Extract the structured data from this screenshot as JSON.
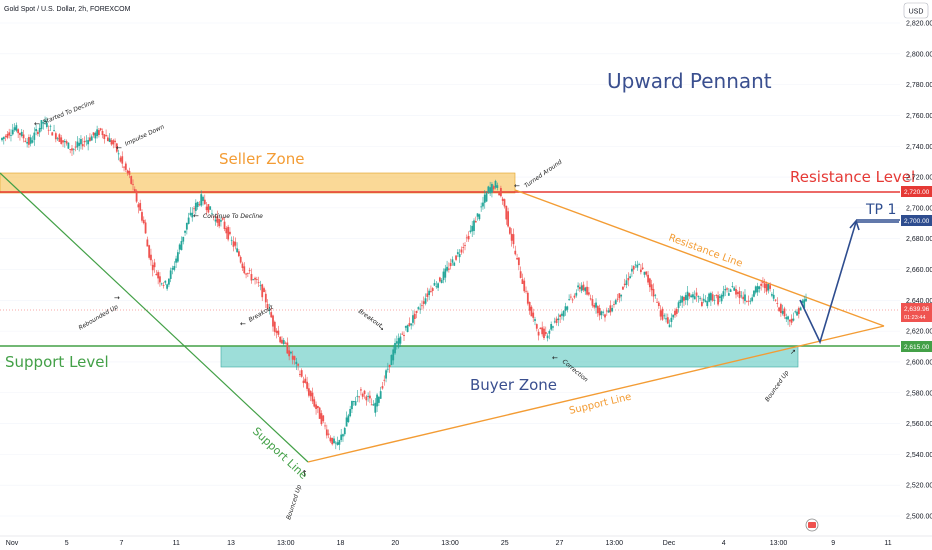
{
  "header": {
    "symbol_title": "Gold Spot / U.S. Dollar, 2h, FOREXCOM",
    "currency_button": "USD"
  },
  "price_tags": {
    "resistance": "2,720.00",
    "tp": "2,700.00",
    "current_price": "2,639.96",
    "countdown": "01:23:44",
    "support": "2,615.00"
  },
  "colors": {
    "seller_zone": "#f5b942",
    "buyer_zone": "#5bc8c0",
    "resistance": "#e53935",
    "support": "#43a047",
    "pennant": "#f39c34",
    "projection": "#2e4d8f",
    "candle_up": "#26a69a",
    "candle_down": "#ef5350"
  },
  "chart_data": {
    "type": "candlestick",
    "title": "Upward Pennant",
    "ylim": [
      2490,
      2840
    ],
    "y_ticks": [
      2500,
      2520,
      2540,
      2560,
      2580,
      2600,
      2620,
      2640,
      2660,
      2680,
      2700,
      2720,
      2740,
      2760,
      2780,
      2800,
      2820
    ],
    "y_tick_labels": [
      "2,500.00",
      "2,520.00",
      "2,540.00",
      "2,560.00",
      "2,580.00",
      "2,600.00",
      "2,620.00",
      "2,640.00",
      "2,660.00",
      "2,680.00",
      "2,700.00",
      "2,720.00",
      "2,740.00",
      "2,760.00",
      "2,780.00",
      "2,800.00",
      "2,820.00"
    ],
    "x_tick_labels": [
      "Nov",
      "5",
      "7",
      "11",
      "13",
      "13:00",
      "18",
      "20",
      "13:00",
      "25",
      "27",
      "13:00",
      "Dec",
      "4",
      "13:00",
      "9",
      "11"
    ],
    "price_path": [
      [
        0,
        2744
      ],
      [
        4,
        2752
      ],
      [
        8,
        2742
      ],
      [
        12,
        2756
      ],
      [
        16,
        2746
      ],
      [
        20,
        2738
      ],
      [
        24,
        2744
      ],
      [
        28,
        2750
      ],
      [
        32,
        2740
      ],
      [
        34,
        2728
      ],
      [
        36,
        2720
      ],
      [
        38,
        2705
      ],
      [
        40,
        2690
      ],
      [
        41,
        2675
      ],
      [
        42,
        2665
      ],
      [
        44,
        2655
      ],
      [
        46,
        2650
      ],
      [
        48,
        2660
      ],
      [
        50,
        2675
      ],
      [
        52,
        2690
      ],
      [
        54,
        2700
      ],
      [
        56,
        2706
      ],
      [
        58,
        2700
      ],
      [
        60,
        2692
      ],
      [
        62,
        2690
      ],
      [
        64,
        2680
      ],
      [
        66,
        2672
      ],
      [
        68,
        2660
      ],
      [
        70,
        2655
      ],
      [
        72,
        2650
      ],
      [
        74,
        2640
      ],
      [
        76,
        2625
      ],
      [
        78,
        2615
      ],
      [
        80,
        2608
      ],
      [
        82,
        2600
      ],
      [
        84,
        2590
      ],
      [
        86,
        2580
      ],
      [
        88,
        2570
      ],
      [
        90,
        2560
      ],
      [
        92,
        2550
      ],
      [
        94,
        2545
      ],
      [
        96,
        2558
      ],
      [
        98,
        2572
      ],
      [
        100,
        2580
      ],
      [
        102,
        2578
      ],
      [
        104,
        2570
      ],
      [
        106,
        2582
      ],
      [
        108,
        2596
      ],
      [
        110,
        2610
      ],
      [
        112,
        2618
      ],
      [
        114,
        2625
      ],
      [
        116,
        2632
      ],
      [
        118,
        2640
      ],
      [
        120,
        2648
      ],
      [
        122,
        2652
      ],
      [
        124,
        2658
      ],
      [
        126,
        2665
      ],
      [
        128,
        2672
      ],
      [
        130,
        2680
      ],
      [
        132,
        2690
      ],
      [
        134,
        2700
      ],
      [
        136,
        2712
      ],
      [
        138,
        2715
      ],
      [
        140,
        2705
      ],
      [
        142,
        2685
      ],
      [
        144,
        2665
      ],
      [
        146,
        2648
      ],
      [
        148,
        2630
      ],
      [
        150,
        2620
      ],
      [
        152,
        2618
      ],
      [
        154,
        2625
      ],
      [
        156,
        2630
      ],
      [
        158,
        2638
      ],
      [
        160,
        2644
      ],
      [
        162,
        2650
      ],
      [
        164,
        2642
      ],
      [
        166,
        2636
      ],
      [
        168,
        2630
      ],
      [
        170,
        2635
      ],
      [
        172,
        2642
      ],
      [
        174,
        2650
      ],
      [
        176,
        2660
      ],
      [
        178,
        2662
      ],
      [
        180,
        2655
      ],
      [
        182,
        2645
      ],
      [
        184,
        2632
      ],
      [
        186,
        2625
      ],
      [
        188,
        2632
      ],
      [
        190,
        2640
      ],
      [
        192,
        2644
      ],
      [
        194,
        2642
      ],
      [
        196,
        2638
      ],
      [
        198,
        2643
      ],
      [
        200,
        2640
      ],
      [
        202,
        2645
      ],
      [
        204,
        2648
      ],
      [
        206,
        2644
      ],
      [
        208,
        2640
      ],
      [
        210,
        2645
      ],
      [
        212,
        2650
      ],
      [
        214,
        2648
      ],
      [
        216,
        2640
      ],
      [
        218,
        2632
      ],
      [
        220,
        2627
      ],
      [
        222,
        2632
      ],
      [
        224,
        2640
      ]
    ],
    "zones": [
      {
        "name": "Seller Zone",
        "low": 2720,
        "high": 2733
      },
      {
        "name": "Buyer Zone",
        "low": 2604,
        "high": 2615
      }
    ],
    "levels": [
      {
        "name": "Resistance Level",
        "value": 2720
      },
      {
        "name": "Support Level",
        "value": 2615
      }
    ],
    "trendlines": [
      {
        "name": "Resistance Line",
        "from": [
          2715,
          2720
        ],
        "to": [
          2625,
          2625
        ]
      },
      {
        "name": "Support Line",
        "from": [
          2540,
          2540
        ],
        "to": [
          2625,
          2625
        ]
      }
    ],
    "target": {
      "name": "TP 1",
      "value": 2700
    },
    "annotations": {
      "started_to_decline": "Started To Decline",
      "impulse_down": "Impulse Down",
      "continue_to_decline": "Continue To Decline",
      "rebounded_up": "Rebounded Up",
      "breakout_1": "Breakout",
      "breakout_2": "Breakout",
      "bounced_up_1": "Bounced Up",
      "turned_around": "Turned Around",
      "correction": "Correction",
      "bounced_up_2": "Bounced Up"
    },
    "labels": {
      "seller_zone": "Seller Zone",
      "buyer_zone": "Buyer Zone",
      "resistance_level": "Resistance Level",
      "support_level": "Support Level",
      "resistance_line": "Resistance Line",
      "support_line_1": "Support Line",
      "support_line_2": "Support Line",
      "tp": "TP 1"
    }
  }
}
